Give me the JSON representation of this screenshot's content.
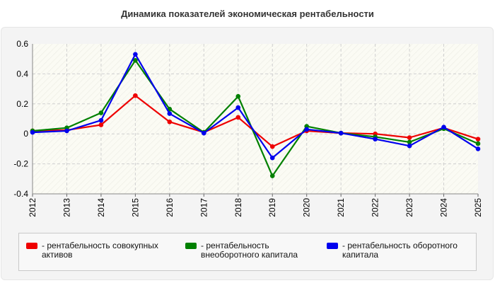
{
  "chart_data": {
    "type": "line",
    "title": "Динамика показателей экономическая рентабельности",
    "x": [
      "2012",
      "2013",
      "2014",
      "2015",
      "2016",
      "2017",
      "2018",
      "2019",
      "2020",
      "2021",
      "2022",
      "2023",
      "2024",
      "2025"
    ],
    "ylim": [
      -0.4,
      0.6
    ],
    "yticks": [
      "0.6",
      "0.4",
      "0.2",
      "0",
      "-0.2",
      "-0.4"
    ],
    "grid": true,
    "legend_position": "bottom",
    "series": [
      {
        "name": "рентабельность совокупных активов",
        "color": "#ee0000",
        "values": [
          0.02,
          0.025,
          0.06,
          0.255,
          0.08,
          0.01,
          0.11,
          -0.085,
          0.02,
          0.005,
          0.0,
          -0.025,
          0.04,
          -0.035
        ]
      },
      {
        "name": "рентабельность внеоборотного капитала",
        "color": "#008000",
        "values": [
          0.02,
          0.04,
          0.14,
          0.49,
          0.165,
          0.01,
          0.25,
          -0.28,
          0.05,
          0.005,
          -0.02,
          -0.055,
          0.035,
          -0.065
        ]
      },
      {
        "name": "рентабельность оборотного капитала",
        "color": "#0000ee",
        "values": [
          0.01,
          0.02,
          0.09,
          0.53,
          0.135,
          0.005,
          0.175,
          -0.16,
          0.03,
          0.005,
          -0.035,
          -0.08,
          0.045,
          -0.1
        ]
      }
    ]
  },
  "legend": {
    "item0": {
      "dash": "-",
      "line1": "рентабельность совокупных",
      "line2": "активов"
    },
    "item1": {
      "dash": "-",
      "line1": "рентабельность",
      "line2": "внеоборотного капитала"
    },
    "item2": {
      "dash": "-",
      "line1": "рентабельность оборотного",
      "line2": "капитала"
    }
  }
}
